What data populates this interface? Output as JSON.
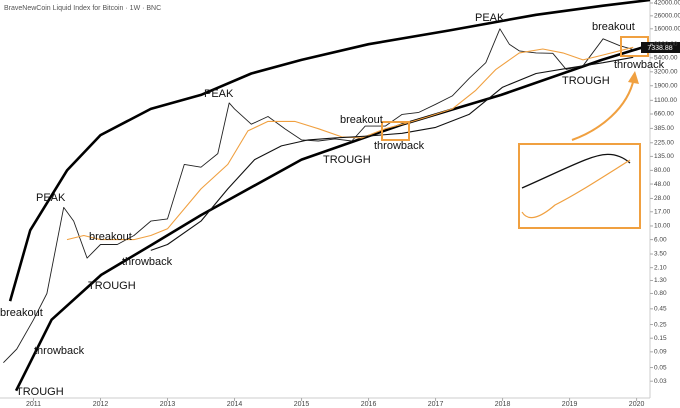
{
  "chart_data": {
    "type": "line",
    "title": "BraveNewCoin Liquid Index for Bitcoin · 1W · BNC",
    "log_scale": true,
    "xlim": [
      2010.5,
      2020.2
    ],
    "xticks": [
      2011,
      2012,
      2013,
      2014,
      2015,
      2016,
      2017,
      2018,
      2019,
      2020
    ],
    "ylim": [
      0.016,
      47000
    ],
    "yticks": [
      {
        "value": 42000,
        "label": "42000.00"
      },
      {
        "value": 26000,
        "label": "26000.00"
      },
      {
        "value": 16000,
        "label": "16000.00"
      },
      {
        "value": 9000,
        "label": "9000.00"
      },
      {
        "value": 5400,
        "label": "5400.00"
      },
      {
        "value": 3200,
        "label": "3200.00"
      },
      {
        "value": 1900,
        "label": "1900.00"
      },
      {
        "value": 1100,
        "label": "1100.00"
      },
      {
        "value": 660,
        "label": "660.00"
      },
      {
        "value": 385,
        "label": "385.00"
      },
      {
        "value": 225,
        "label": "225.00"
      },
      {
        "value": 135,
        "label": "135.00"
      },
      {
        "value": 80,
        "label": "80.00"
      },
      {
        "value": 48,
        "label": "48.00"
      },
      {
        "value": 28,
        "label": "28.00"
      },
      {
        "value": 17,
        "label": "17.00"
      },
      {
        "value": 10,
        "label": "10.00"
      },
      {
        "value": 6,
        "label": "6.00"
      },
      {
        "value": 3.5,
        "label": "3.50"
      },
      {
        "value": 2.1,
        "label": "2.10"
      },
      {
        "value": 1.3,
        "label": "1.30"
      },
      {
        "value": 0.8,
        "label": "0.80"
      },
      {
        "value": 0.45,
        "label": "0.45"
      },
      {
        "value": 0.25,
        "label": "0.25"
      },
      {
        "value": 0.15,
        "label": "0.15"
      },
      {
        "value": 0.09,
        "label": "0.09"
      },
      {
        "value": 0.05,
        "label": "0.05"
      },
      {
        "value": 0.03,
        "label": "0.03"
      }
    ],
    "series": [
      {
        "color": "#222222",
        "x": [
          2010.55,
          2010.75,
          2011.0,
          2011.2,
          2011.45,
          2011.6,
          2011.8,
          2012.0,
          2012.25,
          2012.5,
          2012.75,
          2013.0,
          2013.25,
          2013.5,
          2013.75,
          2013.92,
          2014.0,
          2014.25,
          2014.5,
          2014.75,
          2015.0,
          2015.25,
          2015.5,
          2015.75,
          2015.95,
          2016.25,
          2016.5,
          2016.75,
          2017.0,
          2017.25,
          2017.5,
          2017.75,
          2017.96,
          2018.1,
          2018.25,
          2018.5,
          2018.75,
          2018.95,
          2019.2,
          2019.5,
          2019.75,
          2019.95
        ],
        "values": [
          0.06,
          0.1,
          0.3,
          0.8,
          20,
          12,
          3,
          5,
          5,
          7,
          12,
          13,
          100,
          90,
          150,
          1000,
          800,
          450,
          600,
          380,
          250,
          240,
          260,
          240,
          420,
          420,
          650,
          700,
          950,
          1300,
          2500,
          4500,
          16000,
          9000,
          7000,
          6500,
          6400,
          3500,
          4000,
          11000,
          8500,
          7338.88
        ]
      },
      {
        "color": "#f0a040",
        "x": [
          2011.5,
          2011.75,
          2012.0,
          2012.5,
          2012.75,
          2013.0,
          2013.5,
          2013.9,
          2014.2,
          2014.5,
          2014.9,
          2015.25,
          2015.6,
          2015.9,
          2016.25,
          2016.6,
          2016.9,
          2017.25,
          2017.6,
          2017.9,
          2018.25,
          2018.6,
          2018.9,
          2019.2,
          2019.5,
          2019.95
        ],
        "values": [
          6,
          7,
          6,
          6,
          7,
          9,
          40,
          100,
          350,
          500,
          500,
          380,
          280,
          270,
          380,
          480,
          600,
          800,
          1600,
          3500,
          6500,
          7500,
          6500,
          5000,
          6000,
          8000
        ]
      },
      {
        "color": "#111111",
        "x": [
          2012.75,
          2013.0,
          2013.5,
          2013.9,
          2014.3,
          2014.7,
          2015.1,
          2015.5,
          2016.0,
          2016.5,
          2017.0,
          2017.5,
          2018.0,
          2018.5,
          2019.0,
          2019.5,
          2019.95
        ],
        "values": [
          4,
          5,
          12,
          40,
          120,
          200,
          250,
          270,
          290,
          320,
          400,
          650,
          1800,
          3000,
          3700,
          4500,
          5500
        ]
      }
    ],
    "channel": [
      {
        "color": "#000000",
        "x": [
          2010.65,
          2010.95,
          2011.5,
          2012.0,
          2012.75,
          2013.5,
          2014.25,
          2015.0,
          2016.0,
          2017.2,
          2018.5,
          2019.5,
          2020.2
        ],
        "values": [
          0.6,
          8.5,
          80,
          300,
          800,
          1350,
          3000,
          5000,
          9000,
          15000,
          27000,
          38000,
          47000
        ]
      },
      {
        "color": "#000000",
        "x": [
          2010.74,
          2011.27,
          2012.01,
          2012.76,
          2013.5,
          2015.0,
          2016.49,
          2017.98,
          2019.48,
          2020.2
        ],
        "values": [
          0.021,
          0.3,
          1.6,
          4.9,
          15,
          120,
          440,
          1350,
          5000,
          8700
        ]
      }
    ],
    "annotations": [
      "PEAK",
      "breakout",
      "throwback",
      "TROUGH",
      "PEAK",
      "breakout",
      "throwback",
      "TROUGH",
      "PEAK",
      "breakout",
      "throwback",
      "TROUGH",
      "breakout",
      "throwback",
      "TROUGH"
    ]
  }
}
